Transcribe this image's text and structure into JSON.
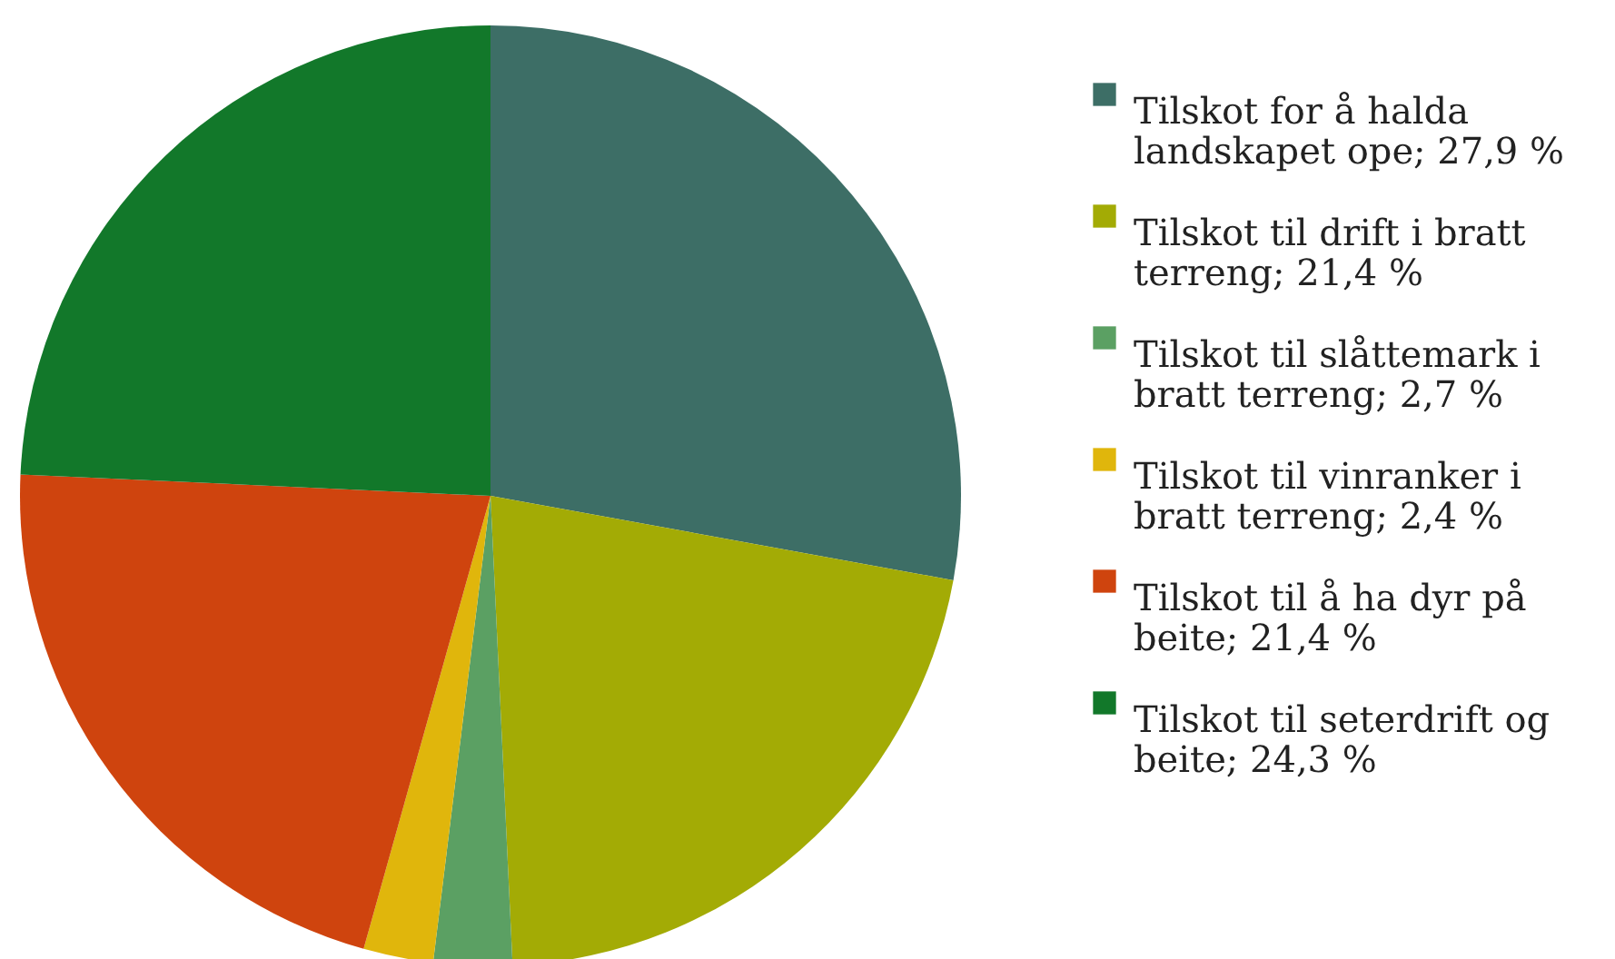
{
  "chart_data": {
    "type": "pie",
    "categories": [
      "Tilskot for å halda landskapet ope; 27,9 %",
      "Tilskot til drift i bratt terreng; 21,4 %",
      "Tilskot til slåttemark i bratt terreng; 2,7 %",
      "Tilskot til vinranker i bratt terreng; 2,4 %",
      "Tilskot til å ha dyr på beite; 21,4 %",
      "Tilskot til seterdrift og beite; 24,3 %"
    ],
    "values": [
      27.9,
      21.4,
      2.7,
      2.4,
      21.4,
      24.3
    ],
    "colors": [
      "#3d6e66",
      "#a3ab05",
      "#5ba063",
      "#e0b60c",
      "#cf440e",
      "#12782a"
    ],
    "legend": "right"
  }
}
